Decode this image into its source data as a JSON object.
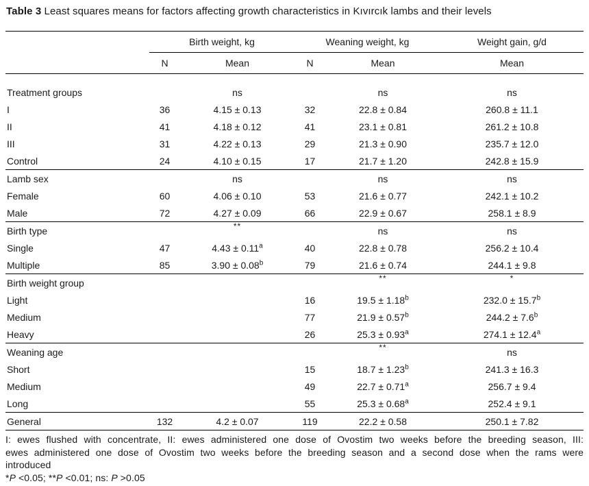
{
  "title": {
    "bold": "Table 3",
    "rest": " Least squares means for factors affecting growth characteristics in Kıvırcık lambs and their levels"
  },
  "table": {
    "group_headers": [
      {
        "label": "Birth weight, kg"
      },
      {
        "label": "Weaning weight, kg"
      },
      {
        "label": "Weight gain, g/d"
      }
    ],
    "sub_headers": {
      "n1": "N",
      "m1": "Mean",
      "n2": "N",
      "m2": "Mean",
      "m3": "Mean"
    },
    "sections": [
      {
        "header": {
          "label": "Treatment groups",
          "m1": {
            "v": "ns"
          },
          "m2": {
            "v": "ns"
          },
          "m3": {
            "v": "ns"
          }
        },
        "rows": [
          {
            "label": "I",
            "n1": "36",
            "m1": {
              "v": "4.15 ± 0.13"
            },
            "n2": "32",
            "m2": {
              "v": "22.8 ± 0.84"
            },
            "m3": {
              "v": "260.8 ± 11.1"
            }
          },
          {
            "label": "II",
            "n1": "41",
            "m1": {
              "v": "4.18 ± 0.12"
            },
            "n2": "41",
            "m2": {
              "v": "23.1 ± 0.81"
            },
            "m3": {
              "v": "261.2 ± 10.8"
            }
          },
          {
            "label": "III",
            "n1": "31",
            "m1": {
              "v": "4.22 ± 0.13"
            },
            "n2": "29",
            "m2": {
              "v": "21.3 ± 0.90"
            },
            "m3": {
              "v": "235.7 ± 12.0"
            }
          },
          {
            "label": "Control",
            "n1": "24",
            "m1": {
              "v": "4.10 ± 0.15"
            },
            "n2": "17",
            "m2": {
              "v": "21.7 ± 1.20"
            },
            "m3": {
              "v": "242.8 ± 15.9"
            }
          }
        ]
      },
      {
        "header": {
          "label": "Lamb sex",
          "m1": {
            "v": "ns"
          },
          "m2": {
            "v": "ns"
          },
          "m3": {
            "v": "ns"
          }
        },
        "rows": [
          {
            "label": "Female",
            "n1": "60",
            "m1": {
              "v": "4.06 ± 0.10"
            },
            "n2": "53",
            "m2": {
              "v": "21.6 ± 0.77"
            },
            "m3": {
              "v": "242.1 ± 10.2"
            }
          },
          {
            "label": "Male",
            "n1": "72",
            "m1": {
              "v": "4.27 ± 0.09"
            },
            "n2": "66",
            "m2": {
              "v": "22.9 ± 0.67"
            },
            "m3": {
              "v": "258.1 ± 8.9"
            }
          }
        ]
      },
      {
        "header": {
          "label": "Birth type",
          "m1": {
            "v": "**",
            "sup": true
          },
          "m2": {
            "v": "ns"
          },
          "m3": {
            "v": "ns"
          }
        },
        "rows": [
          {
            "label": "Single",
            "n1": "47",
            "m1": {
              "v": "4.43 ± 0.11",
              "s": "a"
            },
            "n2": "40",
            "m2": {
              "v": "22.8 ± 0.78"
            },
            "m3": {
              "v": "256.2 ± 10.4"
            }
          },
          {
            "label": "Multiple",
            "n1": "85",
            "m1": {
              "v": "3.90 ± 0.08",
              "s": "b"
            },
            "n2": "79",
            "m2": {
              "v": "21.6 ± 0.74"
            },
            "m3": {
              "v": "244.1 ± 9.8"
            }
          }
        ]
      },
      {
        "header": {
          "label": "Birth weight group",
          "m2": {
            "v": "**",
            "sup": true
          },
          "m3": {
            "v": "*",
            "sup": true
          }
        },
        "rows": [
          {
            "label": "Light",
            "n2": "16",
            "m2": {
              "v": "19.5 ± 1.18",
              "s": "b"
            },
            "m3": {
              "v": "232.0 ± 15.7",
              "s": "b"
            }
          },
          {
            "label": "Medium",
            "n2": "77",
            "m2": {
              "v": "21.9 ± 0.57",
              "s": "b"
            },
            "m3": {
              "v": "244.2 ± 7.6",
              "s": "b"
            }
          },
          {
            "label": "Heavy",
            "n2": "26",
            "m2": {
              "v": "25.3 ± 0.93",
              "s": "a"
            },
            "m3": {
              "v": "274.1 ± 12.4",
              "s": "a"
            }
          }
        ]
      },
      {
        "header": {
          "label": "Weaning age",
          "m2": {
            "v": "**",
            "sup": true
          },
          "m3": {
            "v": "ns"
          }
        },
        "rows": [
          {
            "label": "Short",
            "n2": "15",
            "m2": {
              "v": "18.7 ± 1.23",
              "s": "b"
            },
            "m3": {
              "v": "241.3 ± 16.3"
            }
          },
          {
            "label": "Medium",
            "n2": "49",
            "m2": {
              "v": "22.7 ± 0.71",
              "s": "a"
            },
            "m3": {
              "v": "256.7 ± 9.4"
            }
          },
          {
            "label": "Long",
            "n2": "55",
            "m2": {
              "v": "25.3 ± 0.68",
              "s": "a"
            },
            "m3": {
              "v": "252.4 ± 9.1"
            }
          }
        ]
      }
    ],
    "general": {
      "label": "General",
      "n1": "132",
      "m1": {
        "v": "4.2 ± 0.07"
      },
      "n2": "119",
      "m2": {
        "v": "22.2 ± 0.58"
      },
      "m3": {
        "v": "250.1 ± 7.82"
      }
    }
  },
  "footnotes": {
    "lines": [
      "I: ewes flushed with concentrate, II: ewes administered one dose of Ovostim two weeks before the breeding season, III:",
      "ewes administered one dose of Ovostim two weeks before the breeding season and a second dose when the rams were",
      "introduced"
    ],
    "significance": [
      {
        "t": "*"
      },
      {
        "t": "P",
        "i": true
      },
      {
        "t": " <0.05; "
      },
      {
        "t": "**"
      },
      {
        "t": "P",
        "i": true
      },
      {
        "t": " <0.01; ns: "
      },
      {
        "t": "P",
        "i": true
      },
      {
        "t": " >0.05"
      }
    ]
  }
}
